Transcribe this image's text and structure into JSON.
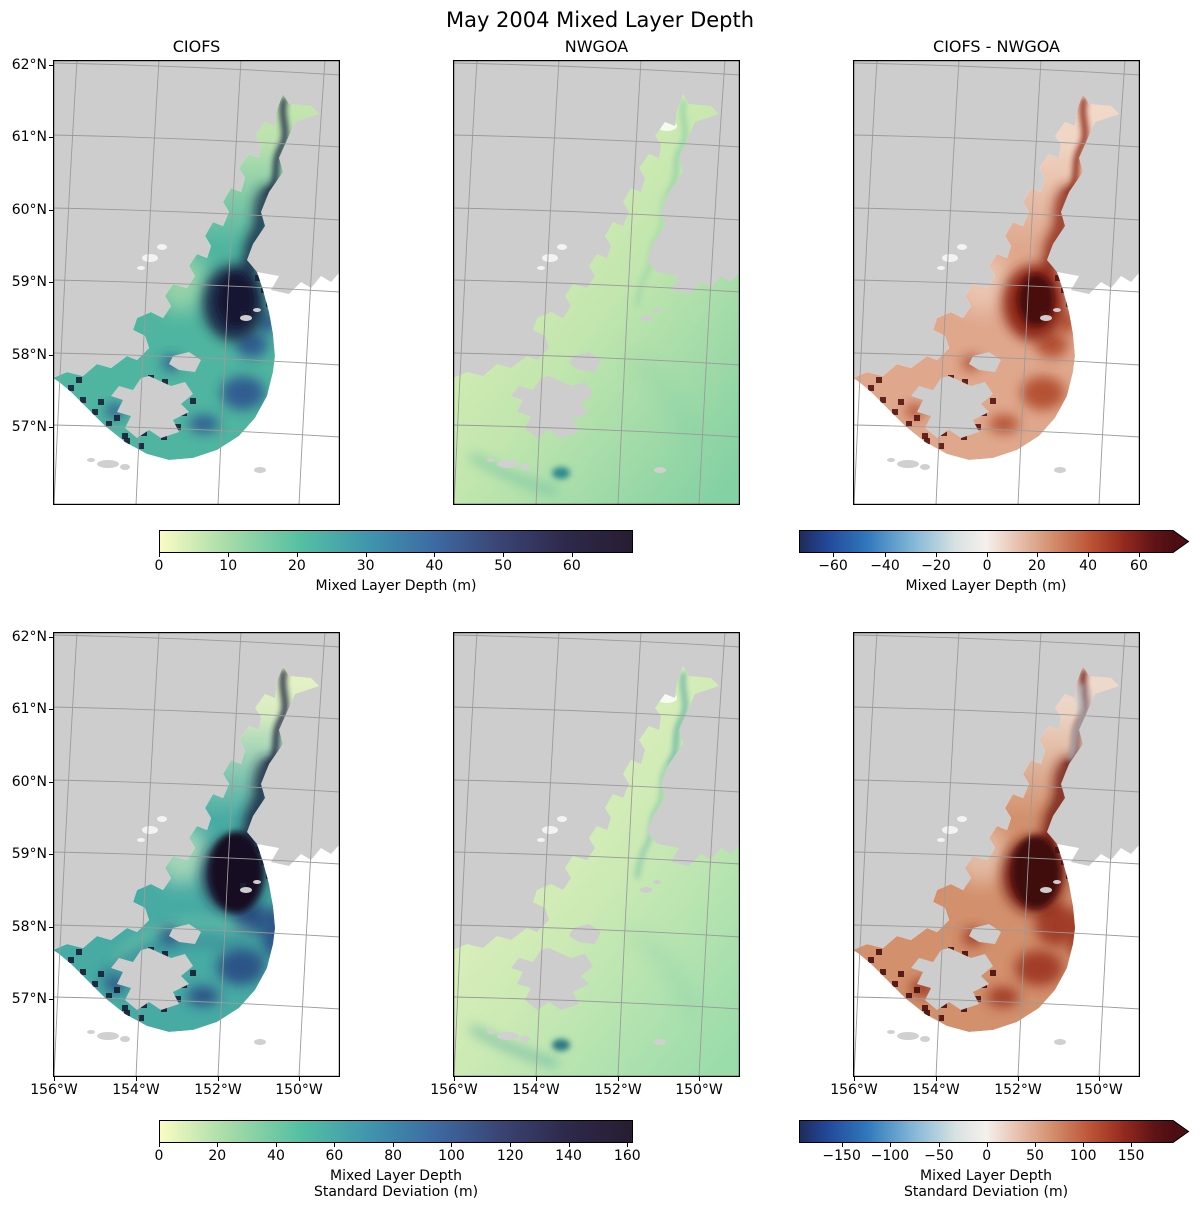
{
  "figure": {
    "title": "May 2004 Mixed Layer Depth",
    "background": "#ffffff",
    "land_color": "#cdcdcd",
    "grid_color": "#9b9b9b"
  },
  "panels": [
    {
      "id": "ciofs-mean",
      "title": "CIOFS",
      "kind": "ciofs",
      "colors": {
        "base": "#4fb5a0",
        "upper": "#cfeab0",
        "channel": "#1e2a49",
        "core": "#191430",
        "blob": "#2f5490",
        "speck": "#1a2038"
      }
    },
    {
      "id": "nwgoa-mean",
      "title": "NWGOA",
      "kind": "nwgoa",
      "colors": {
        "near": "#e9f6bc",
        "mid": "#c2e6ae",
        "far": "#84d1a3",
        "streak": "#55b3a0",
        "blob": "#2f8a8c",
        "streakOp": 0.5
      }
    },
    {
      "id": "diff-mean",
      "title": "CIOFS - NWGOA",
      "kind": "diff",
      "colors": {
        "base": "#dfa88d",
        "upper": "#f3ddcd",
        "channel": "#8c2617",
        "core": "#4a0c10",
        "blob": "#b04a2a",
        "speck": "#571310"
      }
    },
    {
      "id": "ciofs-std",
      "title": "",
      "kind": "ciofs",
      "colors": {
        "base": "#47aba4",
        "upper": "#f3f8c6",
        "channel": "#1b2040",
        "core": "#151024",
        "blob": "#2b4c84",
        "speck": "#181d36",
        "coreRx": 26,
        "coreRy": 40,
        "rings": true
      }
    },
    {
      "id": "nwgoa-std",
      "title": "",
      "kind": "nwgoa",
      "colors": {
        "near": "#f1f8c6",
        "mid": "#cdeab4",
        "far": "#9bdcab",
        "streak": "#3f9fa0",
        "blob": "#2a7880",
        "streakOp": 0.85
      }
    },
    {
      "id": "diff-std",
      "title": "",
      "kind": "diff",
      "colors": {
        "base": "#d2906c",
        "upper": "#f0e0d4",
        "channel": "#6e1810",
        "core": "#400a0c",
        "blob": "#9c3520",
        "speck": "#4a0e0e",
        "blue": "#aecbd9",
        "coreRx": 24,
        "coreRy": 36
      }
    }
  ],
  "axes": {
    "lat_labels": [
      "62°N",
      "61°N",
      "60°N",
      "59°N",
      "58°N",
      "57°N"
    ],
    "lon_labels": [
      "156°W",
      "154°W",
      "152°W",
      "150°W"
    ]
  },
  "colorbars": [
    {
      "id": "mld",
      "label_lines": [
        "Mixed Layer Depth (m)"
      ],
      "arrow": false,
      "stops": [
        [
          0,
          "#fbfcc4"
        ],
        [
          0.14,
          "#a9dca8"
        ],
        [
          0.3,
          "#54bfa3"
        ],
        [
          0.45,
          "#3f93ad"
        ],
        [
          0.58,
          "#3d6ba3"
        ],
        [
          0.72,
          "#3a4474"
        ],
        [
          0.86,
          "#2e294b"
        ],
        [
          1,
          "#271d31"
        ]
      ],
      "ticks": [
        {
          "t": "0",
          "f": 0.0
        },
        {
          "t": "10",
          "f": 0.146
        },
        {
          "t": "20",
          "f": 0.291
        },
        {
          "t": "30",
          "f": 0.436
        },
        {
          "t": "40",
          "f": 0.581
        },
        {
          "t": "50",
          "f": 0.726
        },
        {
          "t": "60",
          "f": 0.871
        }
      ]
    },
    {
      "id": "mld-diff",
      "label_lines": [
        "Mixed Layer Depth (m)"
      ],
      "arrow": true,
      "stops": [
        [
          0,
          "#1f2a5a"
        ],
        [
          0.08,
          "#234a9c"
        ],
        [
          0.18,
          "#2f77bb"
        ],
        [
          0.3,
          "#7fb5d6"
        ],
        [
          0.42,
          "#d8e2e2"
        ],
        [
          0.5,
          "#f5f0ec"
        ],
        [
          0.58,
          "#e8c4b2"
        ],
        [
          0.68,
          "#d28d6b"
        ],
        [
          0.78,
          "#bb5435"
        ],
        [
          0.87,
          "#93291e"
        ],
        [
          0.95,
          "#5f1316"
        ],
        [
          1,
          "#4c0e13"
        ]
      ],
      "ticks": [
        {
          "t": "−60",
          "f": 0.091
        },
        {
          "t": "−40",
          "f": 0.23
        },
        {
          "t": "−20",
          "f": 0.366
        },
        {
          "t": "0",
          "f": 0.503
        },
        {
          "t": "20",
          "f": 0.636
        },
        {
          "t": "40",
          "f": 0.773
        },
        {
          "t": "60",
          "f": 0.909
        }
      ]
    },
    {
      "id": "mld-std",
      "label_lines": [
        "Mixed Layer Depth",
        "Standard Deviation (m)"
      ],
      "arrow": false,
      "stops": [
        [
          0,
          "#fbfcc4"
        ],
        [
          0.14,
          "#a9dca8"
        ],
        [
          0.3,
          "#54bfa3"
        ],
        [
          0.45,
          "#3f93ad"
        ],
        [
          0.58,
          "#3d6ba3"
        ],
        [
          0.72,
          "#3a4474"
        ],
        [
          0.86,
          "#2e294b"
        ],
        [
          1,
          "#271d31"
        ]
      ],
      "ticks": [
        {
          "t": "0",
          "f": 0.0
        },
        {
          "t": "20",
          "f": 0.123
        },
        {
          "t": "40",
          "f": 0.247
        },
        {
          "t": "60",
          "f": 0.37
        },
        {
          "t": "80",
          "f": 0.494
        },
        {
          "t": "100",
          "f": 0.617
        },
        {
          "t": "120",
          "f": 0.741
        },
        {
          "t": "140",
          "f": 0.864
        },
        {
          "t": "160",
          "f": 0.988
        }
      ]
    },
    {
      "id": "mld-std-diff",
      "label_lines": [
        "Mixed Layer Depth",
        "Standard Deviation (m)"
      ],
      "arrow": true,
      "stops": [
        [
          0,
          "#1f2a5a"
        ],
        [
          0.08,
          "#234a9c"
        ],
        [
          0.18,
          "#2f77bb"
        ],
        [
          0.3,
          "#7fb5d6"
        ],
        [
          0.42,
          "#d8e2e2"
        ],
        [
          0.5,
          "#f5f0ec"
        ],
        [
          0.58,
          "#e8c4b2"
        ],
        [
          0.68,
          "#d28d6b"
        ],
        [
          0.78,
          "#bb5435"
        ],
        [
          0.87,
          "#93291e"
        ],
        [
          0.95,
          "#5f1316"
        ],
        [
          1,
          "#4c0e13"
        ]
      ],
      "ticks": [
        {
          "t": "−150",
          "f": 0.114
        },
        {
          "t": "−100",
          "f": 0.243
        },
        {
          "t": "−50",
          "f": 0.374
        },
        {
          "t": "0",
          "f": 0.502
        },
        {
          "t": "50",
          "f": 0.631
        },
        {
          "t": "100",
          "f": 0.76
        },
        {
          "t": "150",
          "f": 0.888
        }
      ]
    }
  ],
  "chart_data": {
    "type": "heatmap",
    "title": "May 2004 Mixed Layer Depth",
    "layout": "2 rows x 3 columns of geographic maps with 4 horizontal colorbars",
    "columns": [
      "CIOFS",
      "NWGOA",
      "CIOFS - NWGOA"
    ],
    "rows": [
      {
        "quantity": "Mixed Layer Depth (m)",
        "model_colorbar": {
          "range": [
            0,
            68
          ],
          "ticks": [
            0,
            10,
            20,
            30,
            40,
            50,
            60
          ],
          "colormap": "light-yellow to green to teal to dark navy (cmocean deep style)"
        },
        "difference_colorbar": {
          "range": [
            -75,
            75
          ],
          "ticks": [
            -60,
            -40,
            -20,
            0,
            20,
            40,
            60
          ],
          "extend": "max",
          "colormap": "dark blue - white - dark red diverging"
        }
      },
      {
        "quantity": "Mixed Layer Depth Standard Deviation (m)",
        "model_colorbar": {
          "range": [
            0,
            162
          ],
          "ticks": [
            0,
            20,
            40,
            60,
            80,
            100,
            120,
            140,
            160
          ],
          "colormap": "light-yellow to green to teal to dark navy (cmocean deep style)"
        },
        "difference_colorbar": {
          "range": [
            -190,
            190
          ],
          "ticks": [
            -150,
            -100,
            -50,
            0,
            50,
            100,
            150
          ],
          "extend": "max",
          "colormap": "dark blue - white - dark red diverging"
        }
      }
    ],
    "x_axis": {
      "tick_labels": [
        "156°W",
        "154°W",
        "152°W",
        "150°W"
      ],
      "shown_under": "bottom row only"
    },
    "y_axis": {
      "tick_labels": [
        "62°N",
        "61°N",
        "60°N",
        "59°N",
        "58°N",
        "57°N"
      ],
      "shown_left_of": "left column only"
    },
    "grid": true,
    "notes": "Gray = land, white = ocean outside model domain; CIOFS panels show deep mixed layers (dark) in central Cook Inlet, NWGOA panels show shallow uniform values (pale green); difference panels are predominantly red (CIOFS deeper)."
  }
}
